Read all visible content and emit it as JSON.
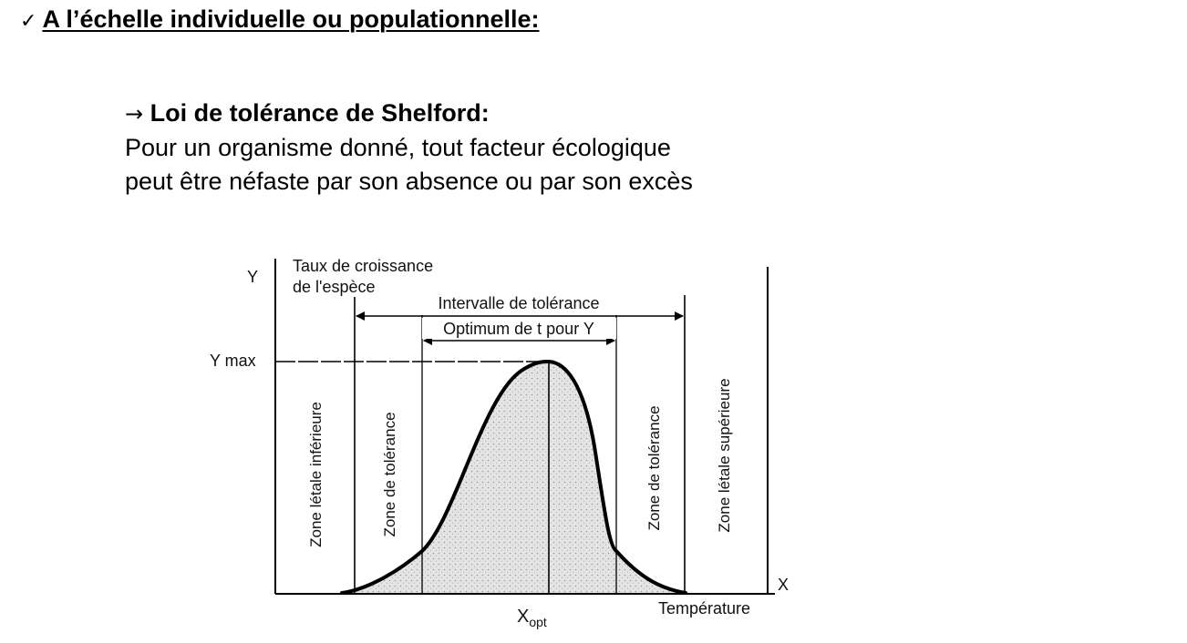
{
  "heading": {
    "check_mark": "✓",
    "text": "A l’échelle individuelle ou populationnelle:"
  },
  "law": {
    "arrow": "→",
    "title": "Loi de tolérance de Shelford:",
    "line1": "Pour un organisme donné, tout facteur écologique",
    "line2": "peut être néfaste par son absence ou par son excès"
  },
  "figure": {
    "y_axis_letter": "Y",
    "y_axis_label_line1": "Taux de croissance",
    "y_axis_label_line2": "de l'espèce",
    "y_max_label": "Y max",
    "x_axis_letter": "X",
    "x_axis_label": "Température",
    "x_opt_main": "X",
    "x_opt_sub": "opt",
    "tolerance_interval": "Intervalle de tolérance",
    "optimum_label": "Optimum de t pour Y",
    "zones": {
      "lower_lethal": "Zone létale inférieure",
      "lower_tolerance": "Zone de tolérance",
      "upper_tolerance": "Zone de tolérance",
      "upper_lethal": "Zone létale supérieure"
    },
    "curve_color": "#000000",
    "shading_color": "#d8d8d8"
  }
}
